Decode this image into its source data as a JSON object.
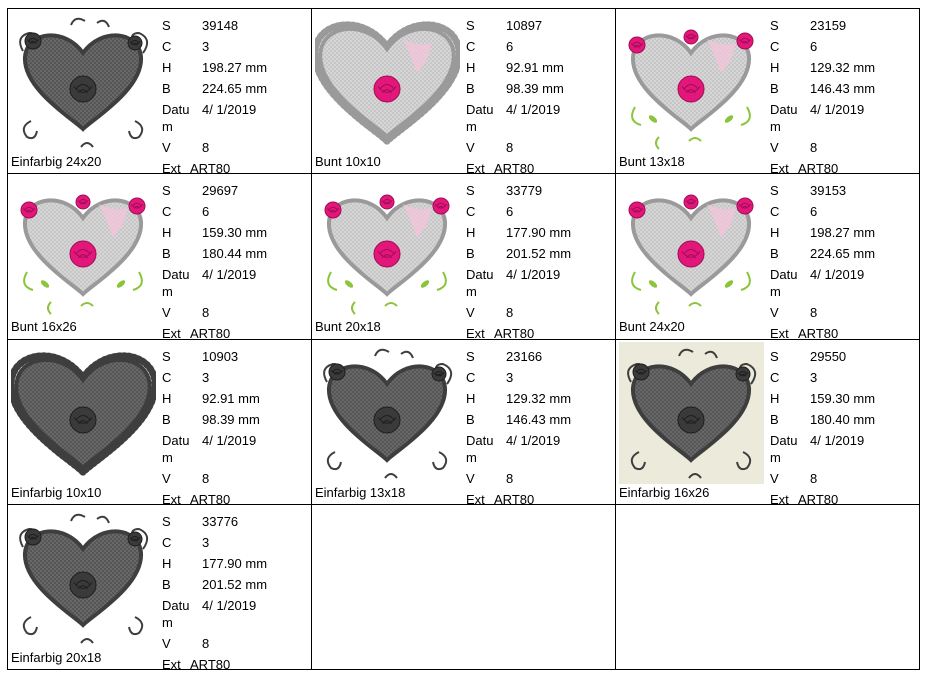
{
  "items": [
    {
      "caption": "Einfarbig 24x20",
      "s": "39148",
      "c": "3",
      "h": "198.27 mm",
      "b": "224.65 mm",
      "datum": "4/ 1/2019",
      "v": "8",
      "ext": "ART80",
      "style": "dark",
      "shape": "swirl",
      "bg": false
    },
    {
      "caption": "Bunt 10x10",
      "s": "10897",
      "c": "6",
      "h": "92.91 mm",
      "b": "98.39 mm",
      "datum": "4/ 1/2019",
      "v": "8",
      "ext": "ART80",
      "style": "color",
      "shape": "scallop",
      "bg": false
    },
    {
      "caption": "Bunt 13x18",
      "s": "23159",
      "c": "6",
      "h": "129.32 mm",
      "b": "146.43 mm",
      "datum": "4/ 1/2019",
      "v": "8",
      "ext": "ART80",
      "style": "color",
      "shape": "vine",
      "bg": false
    },
    {
      "caption": "Bunt 16x26",
      "s": "29697",
      "c": "6",
      "h": "159.30 mm",
      "b": "180.44 mm",
      "datum": "4/ 1/2019",
      "v": "8",
      "ext": "ART80",
      "style": "color",
      "shape": "vine",
      "bg": false
    },
    {
      "caption": "Bunt 20x18",
      "s": "33779",
      "c": "6",
      "h": "177.90 mm",
      "b": "201.52 mm",
      "datum": "4/ 1/2019",
      "v": "8",
      "ext": "ART80",
      "style": "color",
      "shape": "vine",
      "bg": false
    },
    {
      "caption": "Bunt 24x20",
      "s": "39153",
      "c": "6",
      "h": "198.27 mm",
      "b": "224.65 mm",
      "datum": "4/ 1/2019",
      "v": "8",
      "ext": "ART80",
      "style": "color",
      "shape": "vine",
      "bg": false
    },
    {
      "caption": "Einfarbig 10x10",
      "s": "10903",
      "c": "3",
      "h": "92.91 mm",
      "b": "98.39 mm",
      "datum": "4/ 1/2019",
      "v": "8",
      "ext": "ART80",
      "style": "dark",
      "shape": "scallop",
      "bg": false
    },
    {
      "caption": "Einfarbig 13x18",
      "s": "23166",
      "c": "3",
      "h": "129.32 mm",
      "b": "146.43 mm",
      "datum": "4/ 1/2019",
      "v": "8",
      "ext": "ART80",
      "style": "dark",
      "shape": "swirl",
      "bg": false
    },
    {
      "caption": "Einfarbig 16x26",
      "s": "29550",
      "c": "3",
      "h": "159.30 mm",
      "b": "180.40 mm",
      "datum": "4/ 1/2019",
      "v": "8",
      "ext": "ART80",
      "style": "dark",
      "shape": "swirl",
      "bg": true
    },
    {
      "caption": "Einfarbig 20x18",
      "s": "33776",
      "c": "3",
      "h": "177.90 mm",
      "b": "201.52 mm",
      "datum": "4/ 1/2019",
      "v": "8",
      "ext": "ART80",
      "style": "dark",
      "shape": "swirl",
      "bg": false
    }
  ],
  "labels": {
    "s": "S",
    "c": "C",
    "h": "H",
    "b": "B",
    "datum_line1": "Datu",
    "datum_line2": "m",
    "v": "V",
    "ext": "Ext"
  },
  "colors": {
    "rose": "#e3167a",
    "leaf": "#8cc43c",
    "frame_light": "#9a9a9a",
    "frame_dark": "#3e3e3e",
    "fill_light": "#d8d8d8",
    "fill_dark": "#6a6a6a"
  }
}
